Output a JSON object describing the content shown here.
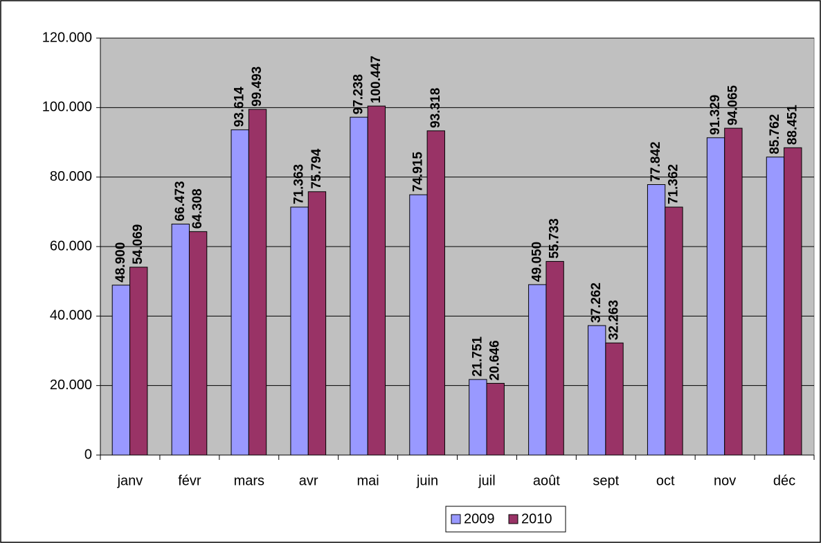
{
  "chart_data": {
    "type": "bar",
    "categories": [
      "janv",
      "févr",
      "mars",
      "avr",
      "mai",
      "juin",
      "juil",
      "août",
      "sept",
      "oct",
      "nov",
      "déc"
    ],
    "series": [
      {
        "name": "2009",
        "color": "#9999ff",
        "values": [
          48900,
          66473,
          93614,
          71363,
          97238,
          74915,
          21751,
          49050,
          37262,
          77842,
          91329,
          85762
        ],
        "value_labels": [
          "48.900",
          "66.473",
          "93.614",
          "71.363",
          "97.238",
          "74.915",
          "21.751",
          "49.050",
          "37.262",
          "77.842",
          "91.329",
          "85.762"
        ]
      },
      {
        "name": "2010",
        "color": "#993366",
        "values": [
          54069,
          64308,
          99493,
          75794,
          100447,
          93318,
          20646,
          55733,
          32263,
          71362,
          94065,
          88451
        ],
        "value_labels": [
          "54.069",
          "64.308",
          "99.493",
          "75.794",
          "100.447",
          "93.318",
          "20.646",
          "55.733",
          "32.263",
          "71.362",
          "94.065",
          "88.451"
        ]
      }
    ],
    "ylim": [
      0,
      120000
    ],
    "yticks": [
      0,
      {
        "value": 20000,
        "label": "20.000"
      },
      {
        "value": 40000,
        "label": "40.000"
      },
      {
        "value": 60000,
        "label": "60.000"
      },
      {
        "value": 80000,
        "label": "80.000"
      },
      {
        "value": 100000,
        "label": "100.000"
      },
      {
        "value": 120000,
        "label": "120.000"
      }
    ],
    "grid": true,
    "legend": "bottom"
  }
}
